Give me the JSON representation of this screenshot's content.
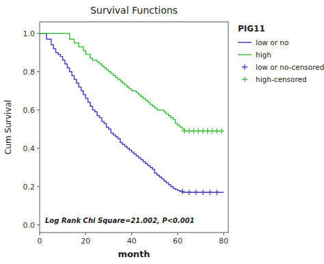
{
  "chart_data": {
    "type": "step",
    "title": "Survival Functions",
    "x_label": "month",
    "y_label": "Cum Survival",
    "annotation": "Log Rank Chi Square=21.002, P<0.001",
    "legend_title": "PIG11",
    "legend": "right",
    "grid": false,
    "xlim": [
      0,
      82
    ],
    "ylim": [
      -0.04,
      1.06
    ],
    "xticks": [
      0,
      20,
      40,
      60,
      80
    ],
    "yticks": [
      {
        "value": 0.0,
        "label": "0.0"
      },
      0.2,
      0.4,
      0.6,
      0.8,
      {
        "value": 1.0,
        "label": "1.0"
      }
    ],
    "series": [
      {
        "name": "low or no",
        "type": "step",
        "color": "#4444bb",
        "x": [
          0,
          3,
          5,
          6,
          7,
          8,
          9,
          10,
          11,
          12,
          13,
          14,
          15,
          16,
          17,
          18,
          19,
          20,
          21,
          22,
          23,
          24,
          25,
          26,
          27,
          28,
          29,
          30,
          31,
          32,
          33,
          34,
          35,
          36,
          37,
          38,
          39,
          40,
          41,
          42,
          43,
          44,
          45,
          46,
          47,
          48,
          49,
          50,
          51,
          52,
          53,
          54,
          55,
          56,
          57,
          58,
          59,
          60,
          61,
          62,
          63,
          64,
          65,
          66,
          67,
          68,
          69,
          70,
          71,
          72,
          73,
          74,
          75,
          76,
          77,
          80
        ],
        "values": [
          1.0,
          0.97,
          0.94,
          0.92,
          0.9,
          0.89,
          0.88,
          0.86,
          0.84,
          0.82,
          0.8,
          0.78,
          0.76,
          0.74,
          0.72,
          0.7,
          0.68,
          0.66,
          0.64,
          0.62,
          0.6,
          0.59,
          0.57,
          0.56,
          0.54,
          0.53,
          0.51,
          0.5,
          0.48,
          0.47,
          0.46,
          0.45,
          0.43,
          0.42,
          0.41,
          0.4,
          0.39,
          0.38,
          0.37,
          0.36,
          0.35,
          0.34,
          0.33,
          0.32,
          0.31,
          0.3,
          0.29,
          0.27,
          0.26,
          0.25,
          0.24,
          0.23,
          0.22,
          0.21,
          0.2,
          0.19,
          0.185,
          0.18,
          0.175,
          0.17,
          0.17,
          0.17,
          0.17,
          0.17,
          0.17,
          0.17,
          0.17,
          0.17,
          0.17,
          0.17,
          0.17,
          0.17,
          0.17,
          0.17,
          0.17,
          0.17
        ]
      },
      {
        "name": "high",
        "type": "step",
        "color": "#44bb44",
        "x": [
          0,
          12,
          13,
          15,
          17,
          19,
          20,
          22,
          23,
          25,
          26,
          27,
          28,
          29,
          30,
          31,
          32,
          33,
          34,
          35,
          36,
          37,
          38,
          39,
          40,
          41,
          42,
          43,
          44,
          45,
          46,
          47,
          48,
          49,
          50,
          51,
          52,
          53,
          54,
          55,
          56,
          57,
          58,
          59,
          60,
          61,
          62,
          63,
          64,
          65,
          66,
          67,
          68,
          69,
          70,
          71,
          72,
          73,
          74,
          75,
          76,
          77,
          78,
          79,
          80
        ],
        "values": [
          1.0,
          1.0,
          0.97,
          0.95,
          0.93,
          0.91,
          0.89,
          0.87,
          0.86,
          0.85,
          0.84,
          0.83,
          0.82,
          0.81,
          0.8,
          0.79,
          0.78,
          0.77,
          0.76,
          0.75,
          0.74,
          0.73,
          0.72,
          0.71,
          0.7,
          0.7,
          0.69,
          0.68,
          0.67,
          0.66,
          0.65,
          0.64,
          0.63,
          0.62,
          0.61,
          0.6,
          0.6,
          0.6,
          0.59,
          0.58,
          0.57,
          0.56,
          0.55,
          0.53,
          0.52,
          0.51,
          0.5,
          0.49,
          0.49,
          0.49,
          0.49,
          0.49,
          0.49,
          0.49,
          0.49,
          0.49,
          0.49,
          0.49,
          0.49,
          0.49,
          0.49,
          0.49,
          0.49,
          0.49,
          0.49
        ]
      },
      {
        "name": "low or no-censored",
        "type": "scatter",
        "marker": "plus",
        "color": "#4444bb",
        "x": [
          62,
          65,
          68,
          71,
          74,
          77
        ],
        "values": [
          0.175,
          0.17,
          0.17,
          0.17,
          0.17,
          0.17
        ]
      },
      {
        "name": "high-censored",
        "type": "scatter",
        "marker": "plus",
        "color": "#44bb44",
        "x": [
          63,
          65,
          67,
          69,
          71,
          73,
          75,
          77,
          79
        ],
        "values": [
          0.49,
          0.49,
          0.49,
          0.49,
          0.49,
          0.49,
          0.49,
          0.49,
          0.49
        ]
      }
    ]
  }
}
